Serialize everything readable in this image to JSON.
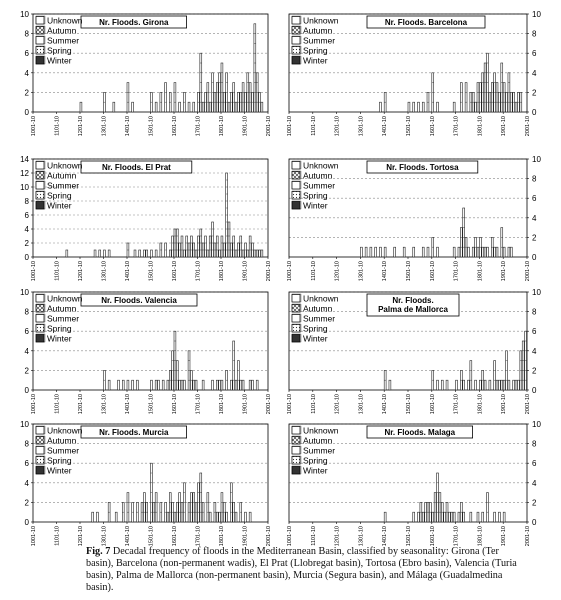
{
  "caption": {
    "label": "Fig. 7",
    "text": "Decadal frequency of floods in the Mediterranean Basin, classified by seasonality: Girona (Ter basin), Barcelona (non-permanent wadis), El Prat (Llobregat basin), Tortosa (Ebro basin), Valencia (Turia basin), Palma de Mallorca (non-permanent basin), Murcia (Segura basin), and Málaga (Guadalmedina basin)."
  },
  "x_tick_labels": [
    "1001-10",
    "1101-10",
    "1201-10",
    "1301-10",
    "1401-10",
    "1501-10",
    "1601-10",
    "1701-10",
    "1801-10",
    "1901-10",
    "2001-10"
  ],
  "legend": [
    {
      "key": "unknown",
      "label": "Unknown"
    },
    {
      "key": "autumn",
      "label": "Autumn"
    },
    {
      "key": "summer",
      "label": "Summer"
    },
    {
      "key": "spring",
      "label": "Spring"
    },
    {
      "key": "winter",
      "label": "Winter"
    }
  ],
  "colors": {
    "bar_outline": "#222222",
    "winter": "#333333",
    "grid": "#888888",
    "axis": "#000000"
  },
  "chart_data": [
    {
      "type": "bar",
      "title": "Nr. Floods. Girona",
      "ylim": [
        0,
        10
      ],
      "yticks": [
        0,
        2,
        4,
        6,
        8,
        10
      ],
      "y_axis_side": "left",
      "grid": true,
      "legend_position": "top-left",
      "x": [
        1201,
        1301,
        1341,
        1401,
        1421,
        1501,
        1521,
        1541,
        1561,
        1581,
        1601,
        1621,
        1641,
        1661,
        1681,
        1701,
        1711,
        1721,
        1731,
        1741,
        1751,
        1761,
        1771,
        1781,
        1791,
        1801,
        1811,
        1821,
        1831,
        1841,
        1851,
        1861,
        1871,
        1881,
        1891,
        1901,
        1911,
        1921,
        1931,
        1941,
        1951,
        1961,
        1971
      ],
      "values": [
        1,
        2,
        1,
        3,
        1,
        2,
        1,
        2,
        3,
        2,
        3,
        1,
        2,
        1,
        1,
        2,
        6,
        1,
        2,
        3,
        1,
        4,
        2,
        3,
        4,
        5,
        2,
        4,
        1,
        2,
        3,
        1,
        2,
        2,
        3,
        2,
        4,
        3,
        2,
        9,
        4,
        2,
        1
      ]
    },
    {
      "type": "bar",
      "title": "Nr. Floods. Barcelona",
      "ylim": [
        0,
        10
      ],
      "yticks": [
        0,
        2,
        4,
        6,
        8,
        10
      ],
      "y_axis_side": "right",
      "grid": true,
      "legend_position": "top-left",
      "x": [
        1381,
        1401,
        1501,
        1521,
        1541,
        1561,
        1581,
        1601,
        1621,
        1691,
        1721,
        1741,
        1761,
        1771,
        1781,
        1791,
        1801,
        1811,
        1821,
        1831,
        1841,
        1851,
        1861,
        1871,
        1881,
        1891,
        1901,
        1911,
        1921,
        1931,
        1941,
        1951,
        1961,
        1971
      ],
      "values": [
        1,
        2,
        1,
        1,
        1,
        1,
        2,
        4,
        1,
        1,
        3,
        3,
        2,
        2,
        1,
        3,
        3,
        4,
        5,
        6,
        2,
        3,
        4,
        3,
        2,
        5,
        3,
        2,
        4,
        2,
        2,
        1,
        2,
        2
      ]
    },
    {
      "type": "bar",
      "title": "Nr. Floods. El Prat",
      "ylim": [
        0,
        14
      ],
      "yticks": [
        0,
        2,
        4,
        6,
        8,
        10,
        12,
        14
      ],
      "y_axis_side": "left",
      "grid": true,
      "legend_position": "top-left",
      "x": [
        1141,
        1261,
        1281,
        1301,
        1321,
        1401,
        1431,
        1451,
        1471,
        1481,
        1501,
        1521,
        1541,
        1561,
        1581,
        1591,
        1601,
        1611,
        1621,
        1631,
        1641,
        1651,
        1661,
        1671,
        1681,
        1691,
        1701,
        1711,
        1721,
        1731,
        1741,
        1751,
        1761,
        1771,
        1781,
        1791,
        1801,
        1811,
        1821,
        1831,
        1841,
        1851,
        1861,
        1871,
        1881,
        1891,
        1901,
        1911,
        1921,
        1931,
        1941,
        1951,
        1961,
        1971
      ],
      "values": [
        1,
        1,
        1,
        1,
        1,
        2,
        1,
        1,
        1,
        1,
        1,
        1,
        2,
        2,
        1,
        3,
        4,
        4,
        2,
        3,
        1,
        3,
        2,
        3,
        2,
        1,
        3,
        4,
        2,
        3,
        1,
        3,
        5,
        2,
        3,
        1,
        3,
        2,
        12,
        5,
        2,
        3,
        1,
        2,
        3,
        1,
        2,
        1,
        3,
        2,
        1,
        1,
        1,
        1
      ]
    },
    {
      "type": "bar",
      "title": "Nr. Floods. Tortosa",
      "ylim": [
        0,
        10
      ],
      "yticks": [
        0,
        2,
        4,
        6,
        8,
        10
      ],
      "y_axis_side": "right",
      "grid": true,
      "legend_position": "top-left",
      "x": [
        1301,
        1321,
        1341,
        1361,
        1381,
        1401,
        1441,
        1481,
        1521,
        1561,
        1581,
        1601,
        1621,
        1691,
        1711,
        1721,
        1731,
        1741,
        1751,
        1771,
        1781,
        1791,
        1801,
        1811,
        1821,
        1831,
        1851,
        1861,
        1871,
        1891,
        1901,
        1921,
        1931
      ],
      "values": [
        1,
        1,
        1,
        1,
        1,
        1,
        1,
        1,
        1,
        1,
        1,
        2,
        1,
        1,
        1,
        3,
        5,
        2,
        1,
        1,
        2,
        1,
        2,
        1,
        1,
        1,
        2,
        1,
        1,
        3,
        1,
        1,
        1
      ]
    },
    {
      "type": "bar",
      "title": "Nr. Floods. Valencia",
      "ylim": [
        0,
        10
      ],
      "yticks": [
        0,
        2,
        4,
        6,
        8,
        10
      ],
      "y_axis_side": "left",
      "grid": true,
      "legend_position": "top-left",
      "x": [
        1301,
        1321,
        1361,
        1381,
        1401,
        1421,
        1441,
        1501,
        1521,
        1531,
        1551,
        1571,
        1581,
        1591,
        1601,
        1611,
        1621,
        1631,
        1641,
        1661,
        1671,
        1681,
        1691,
        1721,
        1761,
        1781,
        1791,
        1801,
        1821,
        1841,
        1851,
        1861,
        1871,
        1881,
        1891,
        1921,
        1931,
        1951
      ],
      "values": [
        2,
        1,
        1,
        1,
        1,
        1,
        1,
        1,
        1,
        1,
        1,
        1,
        2,
        4,
        6,
        3,
        1,
        1,
        1,
        4,
        2,
        1,
        1,
        1,
        1,
        1,
        1,
        1,
        2,
        1,
        5,
        1,
        3,
        1,
        1,
        1,
        1,
        1
      ]
    },
    {
      "type": "bar",
      "title": "Nr. Floods. Palma de Mallorca",
      "ylim": [
        0,
        10
      ],
      "yticks": [
        0,
        2,
        4,
        6,
        8,
        10
      ],
      "y_axis_side": "right",
      "grid": true,
      "legend_position": "top-left",
      "x": [
        1401,
        1421,
        1601,
        1621,
        1641,
        1661,
        1701,
        1721,
        1731,
        1751,
        1761,
        1781,
        1801,
        1811,
        1821,
        1841,
        1861,
        1871,
        1881,
        1891,
        1901,
        1911,
        1921,
        1941,
        1951,
        1961,
        1971,
        1981,
        1991
      ],
      "values": [
        2,
        1,
        2,
        1,
        1,
        1,
        1,
        2,
        1,
        1,
        3,
        1,
        1,
        2,
        1,
        1,
        3,
        1,
        1,
        1,
        1,
        4,
        1,
        1,
        1,
        1,
        4,
        5,
        6
      ]
    },
    {
      "type": "bar",
      "title": "Nr. Floods. Murcia",
      "ylim": [
        0,
        10
      ],
      "yticks": [
        0,
        2,
        4,
        6,
        8,
        10
      ],
      "y_axis_side": "left",
      "grid": true,
      "legend_position": "top-left",
      "x": [
        1251,
        1271,
        1321,
        1351,
        1381,
        1401,
        1421,
        1441,
        1461,
        1471,
        1481,
        1501,
        1511,
        1521,
        1541,
        1561,
        1571,
        1581,
        1591,
        1601,
        1611,
        1621,
        1631,
        1641,
        1661,
        1671,
        1681,
        1691,
        1701,
        1711,
        1721,
        1741,
        1751,
        1771,
        1781,
        1791,
        1801,
        1811,
        1821,
        1841,
        1851,
        1861,
        1881,
        1901,
        1921
      ],
      "values": [
        1,
        1,
        2,
        1,
        2,
        3,
        2,
        2,
        2,
        3,
        2,
        6,
        2,
        3,
        2,
        2,
        1,
        3,
        2,
        1,
        2,
        3,
        2,
        4,
        2,
        3,
        3,
        2,
        4,
        5,
        2,
        3,
        1,
        2,
        1,
        1,
        3,
        2,
        1,
        4,
        2,
        1,
        2,
        1,
        1
      ]
    },
    {
      "type": "bar",
      "title": "Nr. Floods. Malaga",
      "ylim": [
        0,
        10
      ],
      "yticks": [
        0,
        2,
        4,
        6,
        8,
        10
      ],
      "y_axis_side": "right",
      "grid": true,
      "legend_position": "top-left",
      "x": [
        1401,
        1521,
        1541,
        1551,
        1561,
        1571,
        1581,
        1591,
        1601,
        1611,
        1621,
        1631,
        1641,
        1651,
        1661,
        1671,
        1681,
        1691,
        1711,
        1721,
        1731,
        1761,
        1791,
        1811,
        1831,
        1861,
        1881,
        1901
      ],
      "values": [
        1,
        1,
        1,
        2,
        1,
        2,
        2,
        2,
        1,
        3,
        5,
        3,
        2,
        1,
        2,
        1,
        1,
        1,
        1,
        2,
        1,
        1,
        1,
        1,
        3,
        1,
        1,
        1
      ]
    }
  ]
}
